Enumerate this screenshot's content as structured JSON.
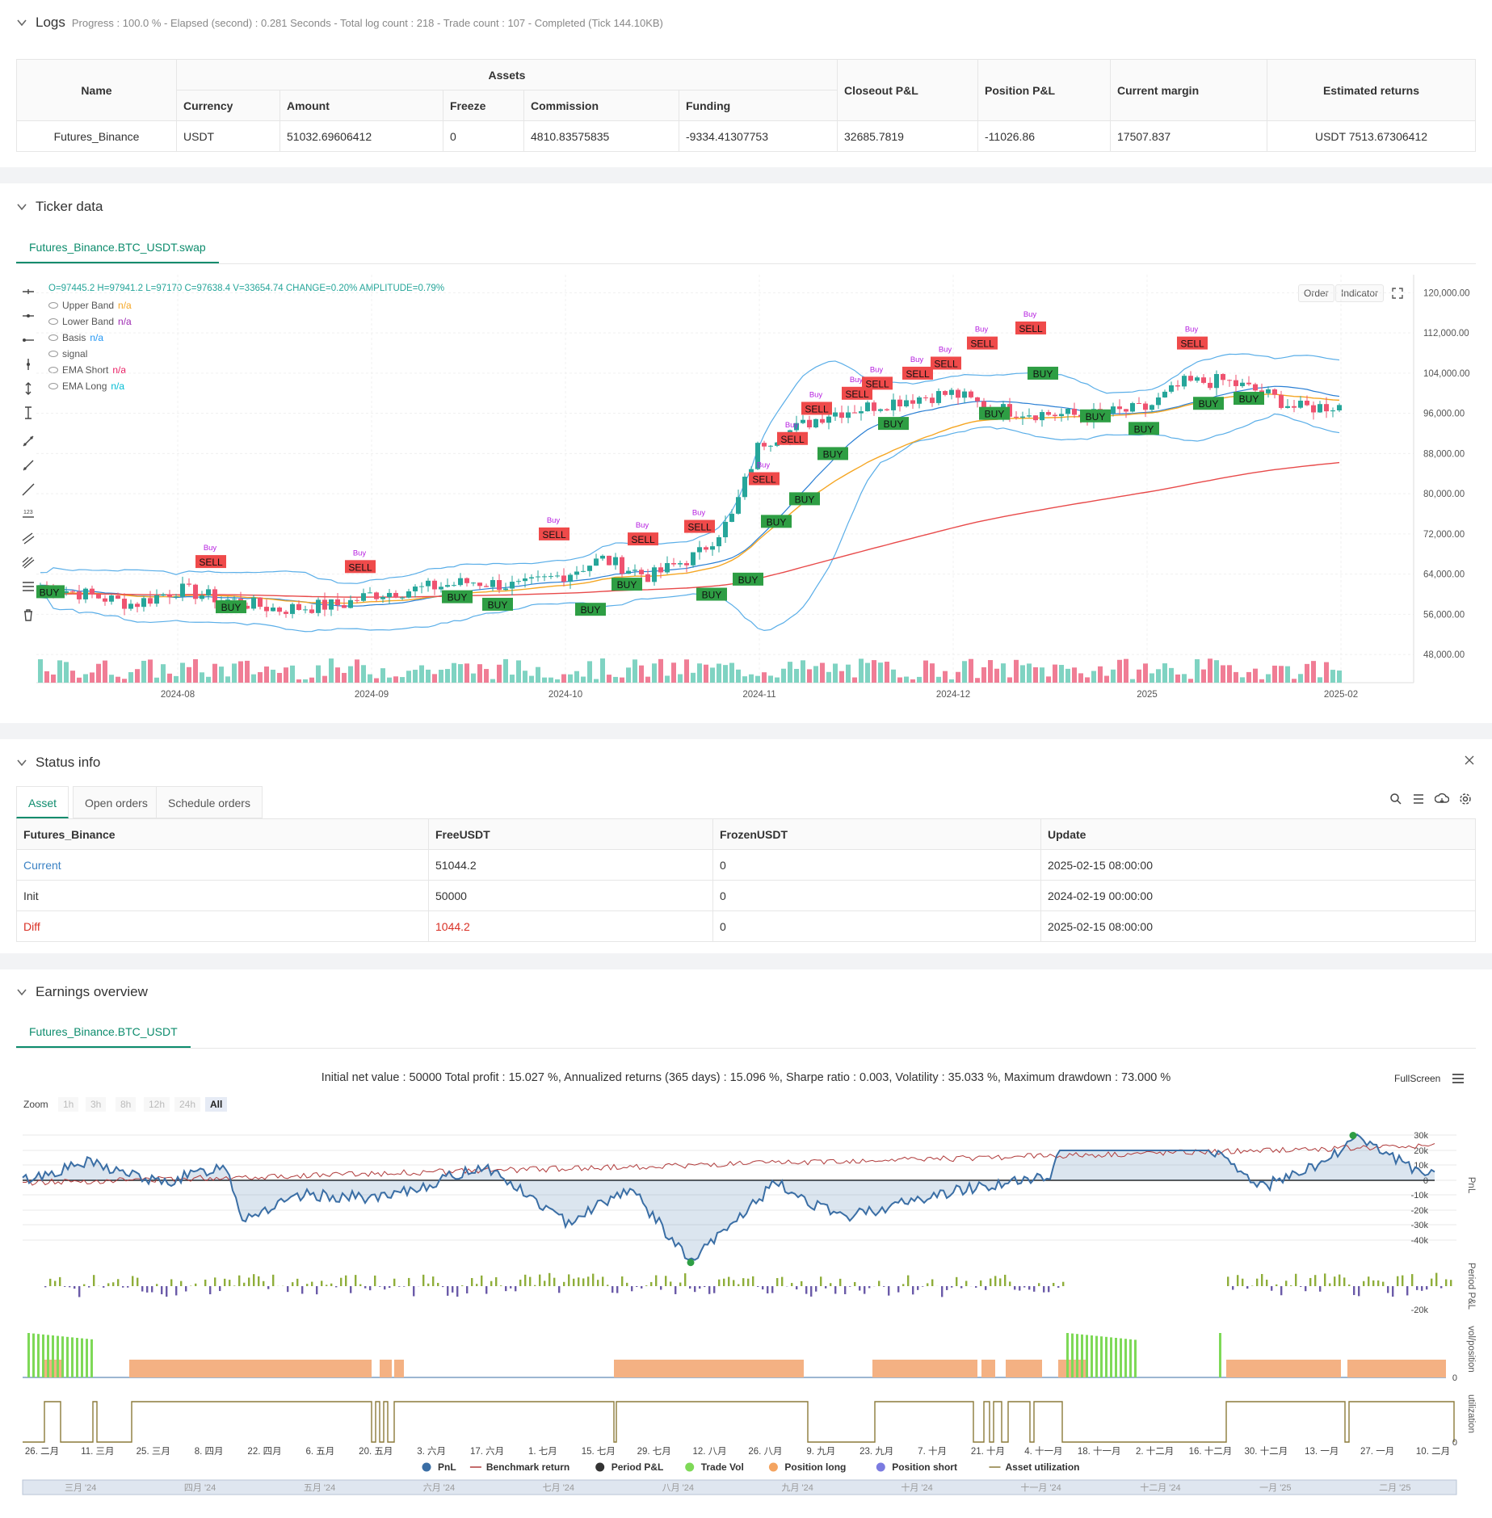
{
  "logs": {
    "title": "Logs",
    "summary": "Progress : 100.0 % - Elapsed (second) : 0.281  Seconds - Total log count : 218 - Trade count : 107 - Completed (Tick 144.10KB)"
  },
  "assets_table": {
    "group_header": "Assets",
    "headers": {
      "name": "Name",
      "currency": "Currency",
      "amount": "Amount",
      "freeze": "Freeze",
      "commission": "Commission",
      "funding": "Funding",
      "closeout": "Closeout P&L",
      "position": "Position P&L",
      "margin": "Current margin",
      "returns": "Estimated returns"
    },
    "row": {
      "name": "Futures_Binance",
      "currency": "USDT",
      "amount": "51032.69606412",
      "freeze": "0",
      "commission": "4810.83575835",
      "funding": "-9334.41307753",
      "closeout": "32685.7819",
      "position": "-11026.86",
      "margin": "17507.837",
      "returns": "USDT 7513.67306412"
    }
  },
  "ticker": {
    "title": "Ticker data",
    "tab": "Futures_Binance.BTC_USDT.swap",
    "ohlc": "O=97445.2 H=97941.2 L=97170 C=97638.4 V=33654.74 CHANGE=0.20% AMPLITUDE=0.79%",
    "buttons": {
      "order": "Order",
      "indicator": "Indicator"
    },
    "legend": [
      {
        "label": "Upper Band",
        "value": "n/a",
        "color": "#f5a623"
      },
      {
        "label": "Lower Band",
        "value": "n/a",
        "color": "#9c27b0"
      },
      {
        "label": "Basis",
        "value": "n/a",
        "color": "#2196f3"
      },
      {
        "label": "signal",
        "value": "",
        "color": "#777777"
      },
      {
        "label": "EMA Short",
        "value": "n/a",
        "color": "#e91e63"
      },
      {
        "label": "EMA Long",
        "value": "n/a",
        "color": "#00bcd4"
      }
    ],
    "y_ticks": [
      "120,000.00",
      "112,000.00",
      "104,000.00",
      "96,000.00",
      "88,000.00",
      "80,000.00",
      "72,000.00",
      "64,000.00",
      "56,000.00",
      "48,000.00"
    ],
    "x_ticks": [
      "2024-08",
      "2024-09",
      "2024-10",
      "2024-11",
      "2024-12",
      "2025",
      "2025-02"
    ]
  },
  "status": {
    "title": "Status info",
    "tabs": [
      "Asset",
      "Open orders",
      "Schedule orders"
    ],
    "headers": [
      "Futures_Binance",
      "FreeUSDT",
      "FrozenUSDT",
      "Update"
    ],
    "rows": [
      {
        "label": "Current",
        "free": "51044.2",
        "frozen": "0",
        "update": "2025-02-15 08:00:00"
      },
      {
        "label": "Init",
        "free": "50000",
        "frozen": "0",
        "update": "2024-02-19 00:00:00"
      },
      {
        "label": "Diff",
        "free": "1044.2",
        "frozen": "0",
        "update": "2025-02-15 08:00:00"
      }
    ]
  },
  "earnings": {
    "title": "Earnings overview",
    "tab": "Futures_Binance.BTC_USDT",
    "summary": "Initial net value : 50000  Total profit : 15.027 %, Annualized returns (365 days) : 15.096 %, Sharpe ratio : 0.003, Volatility : 35.033 %, Maximum drawdown : 73.000 %",
    "fullscreen": "FullScreen",
    "zoom_label": "Zoom",
    "zoom_options": [
      "1h",
      "3h",
      "8h",
      "12h",
      "24h",
      "All"
    ],
    "pnl_ticks": [
      "30k",
      "20k",
      "10k",
      "0",
      "-10k",
      "-20k",
      "-30k",
      "-40k"
    ],
    "period_ticks": [
      "-20k"
    ],
    "vol_ticks": [
      "0"
    ],
    "util_ticks": [
      "0"
    ],
    "axis_labels": [
      "PnL",
      "Period P&L",
      "vol/position",
      "utilization"
    ],
    "x_ticks": [
      "26. 二月",
      "11. 三月",
      "25. 三月",
      "8. 四月",
      "22. 四月",
      "6. 五月",
      "20. 五月",
      "3. 六月",
      "17. 六月",
      "1. 七月",
      "15. 七月",
      "29. 七月",
      "12. 八月",
      "26. 八月",
      "9. 九月",
      "23. 九月",
      "7. 十月",
      "21. 十月",
      "4. 十一月",
      "18. 十一月",
      "2. 十二月",
      "16. 十二月",
      "30. 十二月",
      "13. 一月",
      "27. 一月",
      "10. 二月"
    ],
    "legend": [
      {
        "label": "PnL",
        "color": "#3a6ea5"
      },
      {
        "label": "Benchmark return",
        "color": "#b03a3a"
      },
      {
        "label": "Period P&L",
        "color": "#333333"
      },
      {
        "label": "Trade Vol",
        "color": "#7ed957"
      },
      {
        "label": "Position long",
        "color": "#f4a460"
      },
      {
        "label": "Position short",
        "color": "#7b7be0"
      },
      {
        "label": "Asset utilization",
        "color": "#8b7a3a"
      }
    ],
    "navigator": [
      "三月 '24",
      "四月 '24",
      "五月 '24",
      "六月 '24",
      "七月 '24",
      "八月 '24",
      "九月 '24",
      "十月 '24",
      "十一月 '24",
      "十二月 '24",
      "一月 '25",
      "二月 '25"
    ]
  },
  "signals": {
    "buy": "BUY",
    "sell": "SELL",
    "buy_small": "Buy"
  }
}
